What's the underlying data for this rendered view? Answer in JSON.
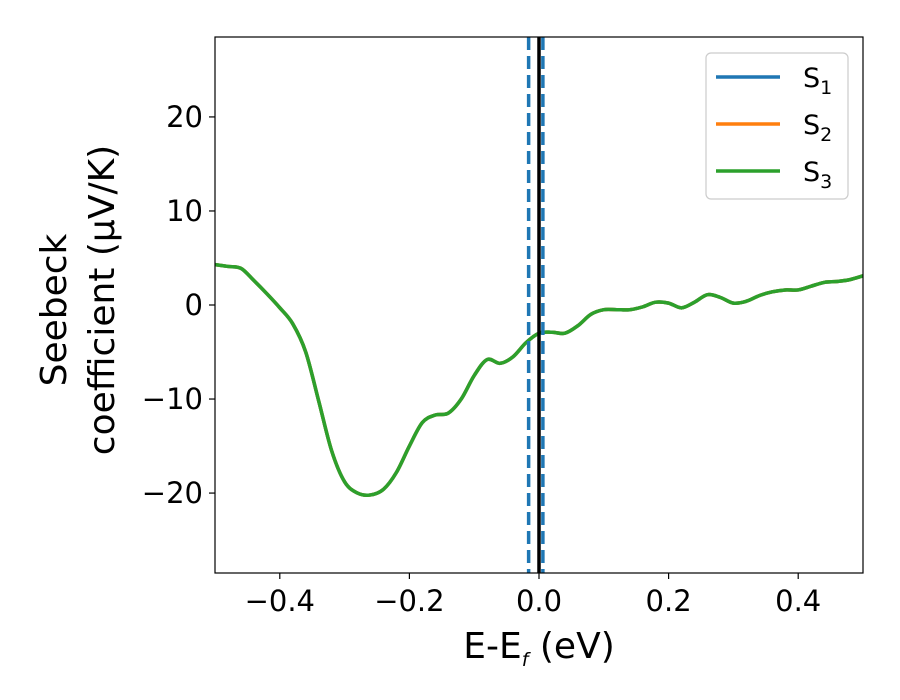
{
  "chart_data": {
    "type": "line",
    "xlabel_main": "E-E",
    "xlabel_sub": "f",
    "xlabel_unit": " (eV)",
    "ylabel_line1": "Seebeck",
    "ylabel_line2": "coefficient  (μV/K)",
    "xlim": [
      -0.5,
      0.5
    ],
    "ylim": [
      -28.5,
      28.5
    ],
    "xticks": [
      -0.4,
      -0.2,
      0.0,
      0.2,
      0.4
    ],
    "xtick_labels": [
      "−0.4",
      "−0.2",
      "0.0",
      "0.2",
      "0.4"
    ],
    "yticks": [
      -20,
      -10,
      0,
      10,
      20
    ],
    "ytick_labels": [
      "−20",
      "−10",
      "0",
      "10",
      "20"
    ],
    "grid": false,
    "legend_position": "top-right",
    "x": [
      -0.5,
      -0.48,
      -0.46,
      -0.44,
      -0.42,
      -0.4,
      -0.38,
      -0.36,
      -0.34,
      -0.32,
      -0.3,
      -0.28,
      -0.26,
      -0.24,
      -0.22,
      -0.2,
      -0.18,
      -0.16,
      -0.14,
      -0.12,
      -0.1,
      -0.08,
      -0.06,
      -0.04,
      -0.02,
      0.0,
      0.02,
      0.04,
      0.06,
      0.08,
      0.1,
      0.12,
      0.14,
      0.16,
      0.18,
      0.2,
      0.22,
      0.24,
      0.26,
      0.28,
      0.3,
      0.32,
      0.34,
      0.36,
      0.38,
      0.4,
      0.42,
      0.44,
      0.46,
      0.48,
      0.5
    ],
    "series": [
      {
        "name_main": "S",
        "name_sub": "1",
        "color": "#1f77b4",
        "values": [
          4.3,
          4.1,
          3.9,
          2.6,
          1.2,
          -0.3,
          -2.0,
          -5.0,
          -10.2,
          -15.5,
          -18.8,
          -20.0,
          -20.2,
          -19.6,
          -17.8,
          -15.0,
          -12.5,
          -11.7,
          -11.5,
          -10.0,
          -7.5,
          -5.8,
          -6.2,
          -5.5,
          -4.0,
          -3.0,
          -2.9,
          -3.0,
          -2.2,
          -1.0,
          -0.5,
          -0.5,
          -0.5,
          -0.2,
          0.3,
          0.2,
          -0.3,
          0.3,
          1.1,
          0.8,
          0.2,
          0.4,
          1.0,
          1.4,
          1.6,
          1.6,
          2.0,
          2.4,
          2.5,
          2.7,
          3.1
        ]
      },
      {
        "name_main": "S",
        "name_sub": "2",
        "color": "#ff7f0e",
        "values": [
          4.3,
          4.1,
          3.9,
          2.6,
          1.2,
          -0.3,
          -2.0,
          -5.0,
          -10.2,
          -15.5,
          -18.8,
          -20.0,
          -20.2,
          -19.6,
          -17.8,
          -15.0,
          -12.5,
          -11.7,
          -11.5,
          -10.0,
          -7.5,
          -5.8,
          -6.2,
          -5.5,
          -4.0,
          -3.0,
          -2.9,
          -3.0,
          -2.2,
          -1.0,
          -0.5,
          -0.5,
          -0.5,
          -0.2,
          0.3,
          0.2,
          -0.3,
          0.3,
          1.1,
          0.8,
          0.2,
          0.4,
          1.0,
          1.4,
          1.6,
          1.6,
          2.0,
          2.4,
          2.5,
          2.7,
          3.1
        ]
      },
      {
        "name_main": "S",
        "name_sub": "3",
        "color": "#2ca02c",
        "values": [
          4.3,
          4.1,
          3.9,
          2.6,
          1.2,
          -0.3,
          -2.0,
          -5.0,
          -10.2,
          -15.5,
          -18.8,
          -20.0,
          -20.2,
          -19.6,
          -17.8,
          -15.0,
          -12.5,
          -11.7,
          -11.5,
          -10.0,
          -7.5,
          -5.8,
          -6.2,
          -5.5,
          -4.0,
          -3.0,
          -2.9,
          -3.0,
          -2.2,
          -1.0,
          -0.5,
          -0.5,
          -0.5,
          -0.2,
          0.3,
          0.2,
          -0.3,
          0.3,
          1.1,
          0.8,
          0.2,
          0.4,
          1.0,
          1.4,
          1.6,
          1.6,
          2.0,
          2.4,
          2.5,
          2.7,
          3.1
        ]
      }
    ],
    "vertical_lines": [
      {
        "x": 0.0,
        "color": "#000000",
        "style": "solid"
      },
      {
        "x": -0.016,
        "color": "#1f77b4",
        "style": "dashed"
      },
      {
        "x": 0.006,
        "color": "#1f77b4",
        "style": "dashed"
      }
    ]
  }
}
